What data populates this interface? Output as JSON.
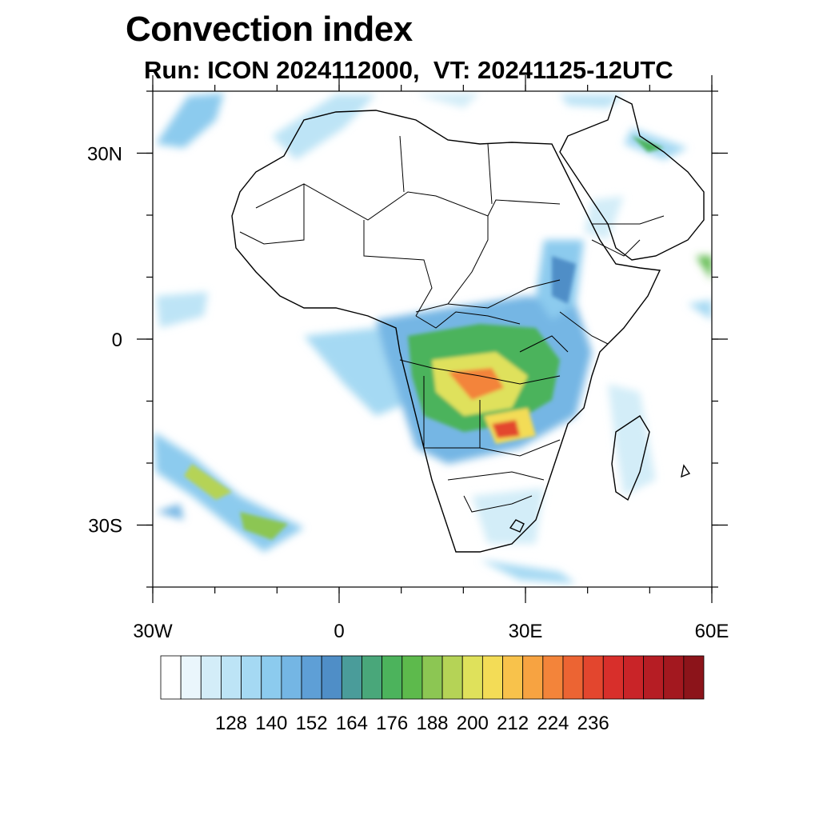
{
  "title": "Convection index",
  "subtitle": "Run: ICON 2024112000,  VT: 20241125-12UTC",
  "map": {
    "lon_range": [
      -30,
      60
    ],
    "lat_range": [
      -40,
      40
    ],
    "lat_ticks": [
      {
        "value": 30,
        "label": "30N"
      },
      {
        "value": 0,
        "label": "0"
      },
      {
        "value": -30,
        "label": "30S"
      }
    ],
    "lon_ticks": [
      {
        "value": -30,
        "label": "30W"
      },
      {
        "value": 0,
        "label": "0"
      },
      {
        "value": 30,
        "label": "30E"
      },
      {
        "value": 60,
        "label": "60E"
      }
    ]
  },
  "colorbar": {
    "colors": [
      "#ffffff",
      "#eaf6fc",
      "#d3edf8",
      "#bde4f6",
      "#a5d9f3",
      "#8ccbee",
      "#74b6e4",
      "#5e9fd6",
      "#4f8ec7",
      "#4a9c9a",
      "#49a77a",
      "#4cb35c",
      "#5dba4c",
      "#8cc653",
      "#b5d356",
      "#dfe15b",
      "#f3dc56",
      "#f8c24b",
      "#f7a341",
      "#f3843a",
      "#ec6433",
      "#e3462e",
      "#d82f2b",
      "#c92428",
      "#b61d24",
      "#a3181f",
      "#8c141a"
    ],
    "labels": [
      "128",
      "140",
      "152",
      "164",
      "176",
      "188",
      "200",
      "212",
      "224",
      "236"
    ],
    "label_bin_index": [
      2,
      4,
      6,
      8,
      10,
      12,
      14,
      16,
      18,
      20
    ]
  }
}
